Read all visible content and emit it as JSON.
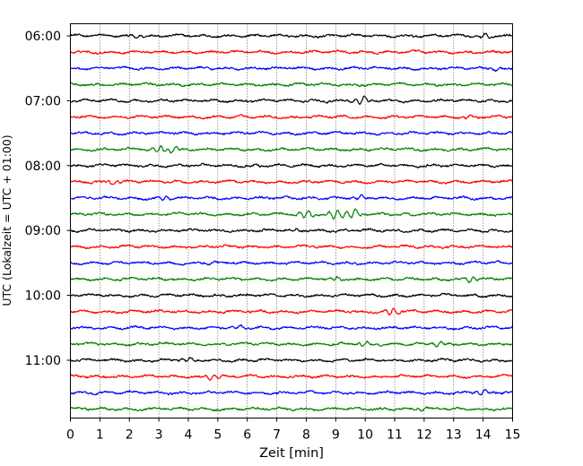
{
  "chart_data": {
    "type": "line",
    "title": "",
    "xlabel": "Zeit  [min]",
    "ylabel": "UTC (Lokalzeit = UTC + 01:00)",
    "xlim": [
      0,
      15
    ],
    "x_ticks": [
      "0",
      "1",
      "2",
      "3",
      "4",
      "5",
      "6",
      "7",
      "8",
      "9",
      "10",
      "11",
      "12",
      "13",
      "14",
      "15"
    ],
    "y_ticks": [
      "06:00",
      "07:00",
      "08:00",
      "09:00",
      "10:00",
      "11:00"
    ],
    "y_tick_trace_index": [
      0,
      4,
      8,
      12,
      16,
      20
    ],
    "grid": "vertical-dotted",
    "colors": [
      "#000000",
      "#ff0000",
      "#0000ff",
      "#008000"
    ],
    "trace_start_times": [
      "06:00",
      "06:15",
      "06:30",
      "06:45",
      "07:00",
      "07:15",
      "07:30",
      "07:45",
      "08:00",
      "08:15",
      "08:30",
      "08:45",
      "09:00",
      "09:15",
      "09:30",
      "09:45",
      "10:00",
      "10:15",
      "10:30",
      "10:45",
      "11:00",
      "11:15",
      "11:30",
      "11:45"
    ],
    "events": [
      {
        "trace": 0,
        "x": 2.3,
        "amp": 0.4
      },
      {
        "trace": 0,
        "x": 14.0,
        "amp": 0.5
      },
      {
        "trace": 2,
        "x": 14.5,
        "amp": 0.4
      },
      {
        "trace": 4,
        "x": 9.9,
        "amp": 0.8
      },
      {
        "trace": 5,
        "x": 13.5,
        "amp": 0.4
      },
      {
        "trace": 7,
        "x": 3.0,
        "amp": 0.8
      },
      {
        "trace": 7,
        "x": 3.5,
        "amp": 0.6
      },
      {
        "trace": 8,
        "x": 6.2,
        "amp": 0.3
      },
      {
        "trace": 9,
        "x": 1.5,
        "amp": 0.5
      },
      {
        "trace": 10,
        "x": 3.2,
        "amp": 0.4
      },
      {
        "trace": 10,
        "x": 9.8,
        "amp": 0.5
      },
      {
        "trace": 11,
        "x": 8.0,
        "amp": 0.9
      },
      {
        "trace": 11,
        "x": 9.0,
        "amp": 1.1
      },
      {
        "trace": 11,
        "x": 9.6,
        "amp": 1.0
      },
      {
        "trace": 12,
        "x": 7.6,
        "amp": 0.3
      },
      {
        "trace": 14,
        "x": 4.8,
        "amp": 0.3
      },
      {
        "trace": 15,
        "x": 9.0,
        "amp": 0.5
      },
      {
        "trace": 15,
        "x": 13.6,
        "amp": 0.7
      },
      {
        "trace": 17,
        "x": 10.9,
        "amp": 0.8
      },
      {
        "trace": 18,
        "x": 5.7,
        "amp": 0.4
      },
      {
        "trace": 19,
        "x": 10.0,
        "amp": 0.5
      },
      {
        "trace": 19,
        "x": 12.5,
        "amp": 0.5
      },
      {
        "trace": 20,
        "x": 4.0,
        "amp": 0.4
      },
      {
        "trace": 21,
        "x": 4.8,
        "amp": 0.6
      },
      {
        "trace": 22,
        "x": 14.0,
        "amp": 0.6
      },
      {
        "trace": 23,
        "x": 12.0,
        "amp": 0.3
      }
    ]
  }
}
